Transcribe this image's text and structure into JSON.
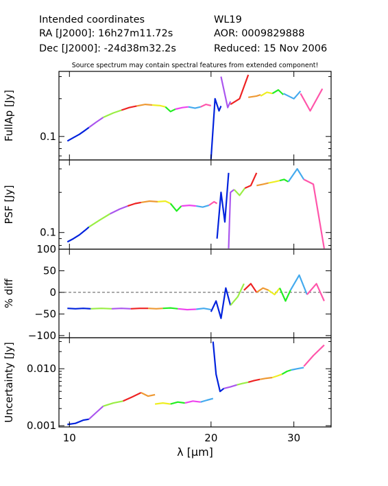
{
  "header": {
    "title": "Intended coordinates",
    "ra": "RA  [J2000]: 16h27m11.72s",
    "dec": "Dec [J2000]: -24d38m32.2s",
    "object": "WL19",
    "aor": "AOR:  0009829888",
    "reduced": "Reduced: 15 Nov 2006",
    "note": "Source spectrum may contain spectral features from extended component!"
  },
  "chart_data": {
    "type": "line",
    "xlabel": "λ [μm]",
    "xscale": "log",
    "xlim": [
      9.5,
      36
    ],
    "xticks": [
      10,
      20,
      30
    ],
    "segment_colors": [
      "#0022dd",
      "#aa55ee",
      "#ee2222",
      "#ee9933",
      "#eeee22",
      "#22ee22",
      "#ee44ee",
      "#44aaee",
      "#99ee44",
      "#ff55aa"
    ],
    "panels": [
      {
        "name": "fullap",
        "ylabel": "FullAp [Jy]",
        "yscale": "log",
        "ylim": [
          0.065,
          0.33
        ],
        "yticks": [
          0.1
        ],
        "ytick_labels": [
          "0.1"
        ],
        "segments": [
          {
            "color": "#0022dd",
            "x": [
              9.9,
              10.2,
              10.5,
              10.8,
              11.0
            ],
            "y": [
              0.092,
              0.098,
              0.104,
              0.112,
              0.118
            ]
          },
          {
            "color": "#aa55ee",
            "x": [
              11.0,
              11.4,
              11.8
            ],
            "y": [
              0.118,
              0.13,
              0.142
            ]
          },
          {
            "color": "#99ee44",
            "x": [
              11.8,
              12.4,
              12.9
            ],
            "y": [
              0.142,
              0.154,
              0.162
            ]
          },
          {
            "color": "#ee2222",
            "x": [
              12.9,
              13.4,
              13.9
            ],
            "y": [
              0.162,
              0.17,
              0.175
            ]
          },
          {
            "color": "#ee9933",
            "x": [
              13.9,
              14.5,
              15.0
            ],
            "y": [
              0.175,
              0.18,
              0.178
            ]
          },
          {
            "color": "#eeee22",
            "x": [
              15.0,
              15.6,
              16.0
            ],
            "y": [
              0.178,
              0.176,
              0.172
            ]
          },
          {
            "color": "#22ee22",
            "x": [
              16.0,
              16.4,
              16.8
            ],
            "y": [
              0.172,
              0.158,
              0.165
            ]
          },
          {
            "color": "#ee44ee",
            "x": [
              16.8,
              17.4,
              17.9
            ],
            "y": [
              0.165,
              0.17,
              0.172
            ]
          },
          {
            "color": "#44aaee",
            "x": [
              17.9,
              18.5,
              19.0
            ],
            "y": [
              0.172,
              0.168,
              0.172
            ]
          },
          {
            "color": "#ff55aa",
            "x": [
              19.0,
              19.5,
              20.0
            ],
            "y": [
              0.172,
              0.18,
              0.176
            ]
          },
          {
            "color": "#0022dd",
            "x": [
              20.0,
              20.4,
              20.8,
              21.0
            ],
            "y": [
              0.066,
              0.2,
              0.16,
              0.175
            ]
          },
          {
            "color": "#aa55ee",
            "x": [
              21.0,
              21.7,
              22.0
            ],
            "y": [
              0.3,
              0.17,
              0.19
            ]
          },
          {
            "color": "#ee2222",
            "x": [
              22.0,
              23.0,
              24.0
            ],
            "y": [
              0.18,
              0.2,
              0.31
            ]
          },
          {
            "color": "#ee9933",
            "x": [
              24.0,
              25.0,
              25.5
            ],
            "y": [
              0.205,
              0.21,
              0.215
            ]
          },
          {
            "color": "#eeee22",
            "x": [
              25.5,
              26.3,
              27.0
            ],
            "y": [
              0.21,
              0.225,
              0.22
            ]
          },
          {
            "color": "#22ee22",
            "x": [
              27.0,
              27.8,
              28.5
            ],
            "y": [
              0.22,
              0.235,
              0.215
            ]
          },
          {
            "color": "#44aaee",
            "x": [
              28.5,
              30.0,
              31.0
            ],
            "y": [
              0.22,
              0.2,
              0.23
            ]
          },
          {
            "color": "#ff55aa",
            "x": [
              31.0,
              32.5,
              34.5
            ],
            "y": [
              0.22,
              0.16,
              0.24
            ]
          }
        ]
      },
      {
        "name": "psf",
        "ylabel": "PSF [Jy]",
        "yscale": "log",
        "ylim": [
          0.075,
          0.35
        ],
        "yticks": [
          0.1
        ],
        "ytick_labels": [
          "0.1"
        ],
        "segments": [
          {
            "color": "#0022dd",
            "x": [
              9.9,
              10.2,
              10.5,
              10.8,
              11.0
            ],
            "y": [
              0.085,
              0.09,
              0.096,
              0.104,
              0.11
            ]
          },
          {
            "color": "#99ee44",
            "x": [
              11.0,
              11.6,
              12.2
            ],
            "y": [
              0.11,
              0.124,
              0.138
            ]
          },
          {
            "color": "#aa55ee",
            "x": [
              12.2,
              12.8,
              13.3
            ],
            "y": [
              0.138,
              0.15,
              0.158
            ]
          },
          {
            "color": "#ee2222",
            "x": [
              13.3,
              13.8,
              14.2
            ],
            "y": [
              0.158,
              0.165,
              0.168
            ]
          },
          {
            "color": "#ee9933",
            "x": [
              14.2,
              14.8,
              15.4
            ],
            "y": [
              0.168,
              0.172,
              0.17
            ]
          },
          {
            "color": "#eeee22",
            "x": [
              15.4,
              16.0,
              16.4
            ],
            "y": [
              0.17,
              0.172,
              0.165
            ]
          },
          {
            "color": "#22ee22",
            "x": [
              16.4,
              16.9,
              17.3
            ],
            "y": [
              0.165,
              0.145,
              0.158
            ]
          },
          {
            "color": "#ee44ee",
            "x": [
              17.3,
              18.0,
              18.6
            ],
            "y": [
              0.158,
              0.16,
              0.158
            ]
          },
          {
            "color": "#44aaee",
            "x": [
              18.6,
              19.2,
              19.8
            ],
            "y": [
              0.158,
              0.155,
              0.16
            ]
          },
          {
            "color": "#ff55aa",
            "x": [
              19.8,
              20.3,
              20.6
            ],
            "y": [
              0.16,
              0.17,
              0.165
            ]
          },
          {
            "color": "#0022dd",
            "x": [
              20.6,
              21.0,
              21.4,
              21.8
            ],
            "y": [
              0.09,
              0.2,
              0.12,
              0.28
            ]
          },
          {
            "color": "#aa55ee",
            "x": [
              21.8,
              22.0,
              22.4
            ],
            "y": [
              0.076,
              0.2,
              0.21
            ]
          },
          {
            "color": "#99ee44",
            "x": [
              22.4,
              23.0,
              23.6
            ],
            "y": [
              0.21,
              0.19,
              0.215
            ]
          },
          {
            "color": "#ee2222",
            "x": [
              23.6,
              24.3,
              25.0
            ],
            "y": [
              0.215,
              0.225,
              0.28
            ]
          },
          {
            "color": "#ee9933",
            "x": [
              25.0,
              25.8,
              26.5
            ],
            "y": [
              0.225,
              0.23,
              0.235
            ]
          },
          {
            "color": "#eeee22",
            "x": [
              26.5,
              27.3,
              28.0
            ],
            "y": [
              0.235,
              0.24,
              0.245
            ]
          },
          {
            "color": "#22ee22",
            "x": [
              28.0,
              28.6,
              29.2
            ],
            "y": [
              0.245,
              0.25,
              0.24
            ]
          },
          {
            "color": "#44aaee",
            "x": [
              29.2,
              30.5,
              31.5
            ],
            "y": [
              0.24,
              0.3,
              0.25
            ]
          },
          {
            "color": "#ff55aa",
            "x": [
              31.5,
              33.0,
              34.8
            ],
            "y": [
              0.25,
              0.23,
              0.076
            ]
          }
        ]
      },
      {
        "name": "diff",
        "ylabel": "% diff",
        "yscale": "linear",
        "ylim": [
          -105,
          100
        ],
        "yticks": [
          100,
          50,
          0,
          -50,
          -100
        ],
        "ytick_labels": [
          "100",
          "50",
          "0",
          "−50",
          "−100"
        ],
        "zero_line": true,
        "segments": [
          {
            "color": "#0022dd",
            "x": [
              9.9,
              10.3,
              10.7,
              11.1
            ],
            "y": [
              -37,
              -38,
              -37,
              -38
            ]
          },
          {
            "color": "#99ee44",
            "x": [
              11.1,
              11.7,
              12.3
            ],
            "y": [
              -38,
              -37,
              -38
            ]
          },
          {
            "color": "#aa55ee",
            "x": [
              12.3,
              12.9,
              13.5
            ],
            "y": [
              -38,
              -37,
              -38
            ]
          },
          {
            "color": "#ee2222",
            "x": [
              13.5,
              14.1,
              14.7
            ],
            "y": [
              -38,
              -37,
              -37
            ]
          },
          {
            "color": "#ee9933",
            "x": [
              14.7,
              15.3,
              15.8
            ],
            "y": [
              -37,
              -38,
              -37
            ]
          },
          {
            "color": "#22ee22",
            "x": [
              15.8,
              16.4,
              17.0
            ],
            "y": [
              -37,
              -36,
              -38
            ]
          },
          {
            "color": "#ee44ee",
            "x": [
              17.0,
              17.8,
              18.6
            ],
            "y": [
              -38,
              -40,
              -39
            ]
          },
          {
            "color": "#44aaee",
            "x": [
              18.6,
              19.3,
              20.0
            ],
            "y": [
              -39,
              -37,
              -40
            ]
          },
          {
            "color": "#0022dd",
            "x": [
              20.0,
              20.5,
              21.0,
              21.5,
              22.0
            ],
            "y": [
              -45,
              -20,
              -60,
              10,
              -30
            ]
          },
          {
            "color": "#99ee44",
            "x": [
              22.0,
              22.8,
              23.5
            ],
            "y": [
              -30,
              -10,
              20
            ]
          },
          {
            "color": "#ee2222",
            "x": [
              23.5,
              24.3,
              25.0
            ],
            "y": [
              5,
              20,
              0
            ]
          },
          {
            "color": "#ee9933",
            "x": [
              25.0,
              25.8,
              26.5
            ],
            "y": [
              0,
              10,
              5
            ]
          },
          {
            "color": "#eeee22",
            "x": [
              26.5,
              27.3,
              28.0
            ],
            "y": [
              5,
              -5,
              10
            ]
          },
          {
            "color": "#22ee22",
            "x": [
              28.0,
              28.8,
              29.5
            ],
            "y": [
              10,
              -20,
              5
            ]
          },
          {
            "color": "#44aaee",
            "x": [
              29.5,
              30.8,
              32.0
            ],
            "y": [
              5,
              40,
              -5
            ]
          },
          {
            "color": "#ff55aa",
            "x": [
              32.0,
              33.5,
              34.8
            ],
            "y": [
              -5,
              20,
              -20
            ]
          }
        ]
      },
      {
        "name": "uncertainty",
        "ylabel": "Uncertainty [Jy]",
        "yscale": "log",
        "ylim": [
          0.00095,
          0.035
        ],
        "yticks": [
          0.001,
          0.01
        ],
        "ytick_labels": [
          "0.001",
          "0.010"
        ],
        "segments": [
          {
            "color": "#0022dd",
            "x": [
              9.9,
              10.3,
              10.7,
              11.0
            ],
            "y": [
              0.00105,
              0.0011,
              0.00125,
              0.0013
            ]
          },
          {
            "color": "#aa55ee",
            "x": [
              11.0,
              11.4,
              11.8
            ],
            "y": [
              0.0013,
              0.0017,
              0.0022
            ]
          },
          {
            "color": "#99ee44",
            "x": [
              11.8,
              12.4,
              13.0
            ],
            "y": [
              0.0022,
              0.0025,
              0.0027
            ]
          },
          {
            "color": "#ee2222",
            "x": [
              13.0,
              13.6,
              14.2
            ],
            "y": [
              0.0027,
              0.0032,
              0.0038
            ]
          },
          {
            "color": "#ee9933",
            "x": [
              14.2,
              14.7,
              15.2
            ],
            "y": [
              0.0038,
              0.0033,
              0.0035
            ]
          },
          {
            "color": "#eeee22",
            "x": [
              15.2,
              15.8,
              16.4
            ],
            "y": [
              0.0024,
              0.0025,
              0.0024
            ]
          },
          {
            "color": "#22ee22",
            "x": [
              16.4,
              17.0,
              17.6
            ],
            "y": [
              0.0024,
              0.0026,
              0.0025
            ]
          },
          {
            "color": "#ee44ee",
            "x": [
              17.6,
              18.3,
              19.0
            ],
            "y": [
              0.0025,
              0.0027,
              0.0026
            ]
          },
          {
            "color": "#44aaee",
            "x": [
              19.0,
              19.6,
              20.2
            ],
            "y": [
              0.0026,
              0.0028,
              0.003
            ]
          },
          {
            "color": "#0022dd",
            "x": [
              20.2,
              20.5,
              20.9,
              21.3
            ],
            "y": [
              0.03,
              0.008,
              0.004,
              0.0045
            ]
          },
          {
            "color": "#aa55ee",
            "x": [
              21.3,
              22.0,
              22.7
            ],
            "y": [
              0.0045,
              0.0048,
              0.0052
            ]
          },
          {
            "color": "#99ee44",
            "x": [
              22.7,
              23.3,
              24.0
            ],
            "y": [
              0.0052,
              0.0055,
              0.0058
            ]
          },
          {
            "color": "#ee2222",
            "x": [
              24.0,
              24.7,
              25.4
            ],
            "y": [
              0.0058,
              0.0062,
              0.0065
            ]
          },
          {
            "color": "#ee9933",
            "x": [
              25.4,
              26.2,
              27.0
            ],
            "y": [
              0.0065,
              0.0068,
              0.007
            ]
          },
          {
            "color": "#eeee22",
            "x": [
              27.0,
              27.7,
              28.3
            ],
            "y": [
              0.007,
              0.0075,
              0.008
            ]
          },
          {
            "color": "#22ee22",
            "x": [
              28.3,
              29.0,
              29.6
            ],
            "y": [
              0.008,
              0.009,
              0.0095
            ]
          },
          {
            "color": "#44aaee",
            "x": [
              29.6,
              30.5,
              31.5
            ],
            "y": [
              0.0095,
              0.01,
              0.0105
            ]
          },
          {
            "color": "#ff55aa",
            "x": [
              31.5,
              33.0,
              34.8
            ],
            "y": [
              0.011,
              0.017,
              0.026
            ]
          }
        ]
      }
    ]
  }
}
